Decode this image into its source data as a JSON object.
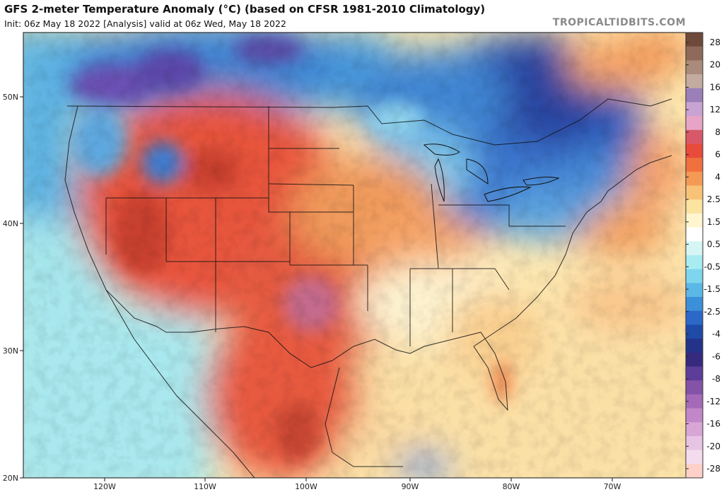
{
  "header": {
    "title": "GFS 2-meter Temperature Anomaly (°C) (based on CFSR 1981-2010 Climatology)",
    "subtitle": "Init: 06z May 18 2022   [Analysis]   valid at 06z Wed, May 18 2022",
    "brand": "TROPICALTIDBITS.COM"
  },
  "map": {
    "lat_labels": [
      "50N",
      "40N",
      "30N",
      "20N"
    ],
    "lon_labels": [
      "120W",
      "110W",
      "100W",
      "90W",
      "80W",
      "70W"
    ]
  },
  "colorbar": {
    "labels": [
      "28",
      "20",
      "16",
      "12",
      "8",
      "6",
      "4",
      "2.5",
      "1.5",
      "0.5",
      "-0.5",
      "-1.5",
      "-2.5",
      "-4",
      "-6",
      "-8",
      "-12",
      "-16",
      "-20",
      "-28"
    ],
    "colors": [
      "#6e4a3a",
      "#8d6a5a",
      "#a98a7b",
      "#c4aba0",
      "#9a7fb8",
      "#c9a3d3",
      "#e7a4c6",
      "#d8586a",
      "#e84a3c",
      "#f0703e",
      "#f59a55",
      "#f8c277",
      "#fbe3a0",
      "#fff6cf",
      "#ffffff",
      "#d6f5f5",
      "#a8ecf2",
      "#7ed6ee",
      "#5bb8e6",
      "#3c8fd9",
      "#2b68c8",
      "#1f4aa8",
      "#23338a",
      "#362a7e",
      "#5c3d99",
      "#8353a8",
      "#a46ab8",
      "#c287c9",
      "#d8a6d6",
      "#e8c4e4",
      "#f4dcef",
      "#ffd0c8"
    ]
  }
}
